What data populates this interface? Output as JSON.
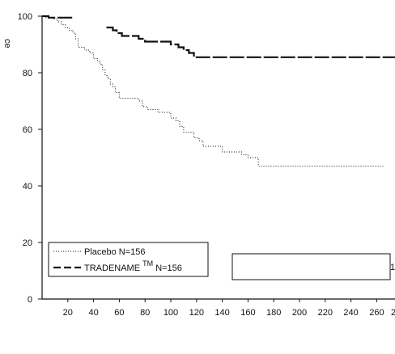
{
  "chart_data": {
    "type": "line",
    "title": "",
    "xlabel": "",
    "ylabel": "ce",
    "xlim": [
      0,
      275
    ],
    "ylim": [
      0,
      100
    ],
    "x_ticks": [
      20,
      40,
      60,
      80,
      100,
      120,
      140,
      160,
      180,
      200,
      220,
      240,
      260
    ],
    "x_tick_cut": "2",
    "y_ticks": [
      0,
      20,
      40,
      60,
      80,
      100
    ],
    "grid": false,
    "legend_position": "bottom-left",
    "legend": [
      {
        "series": "placebo",
        "line_label": "Placebo N=156"
      },
      {
        "series": "tradename",
        "line_label": "TRADENAME",
        "superscript": "TM",
        "suffix": " N=156"
      }
    ],
    "annotation_text": "1",
    "series": [
      {
        "id": "placebo",
        "name": "Placebo N=156",
        "style": "dotted",
        "points": [
          [
            0,
            100
          ],
          [
            3,
            100
          ],
          [
            3,
            99.5
          ],
          [
            8,
            99.5
          ],
          [
            8,
            99
          ],
          [
            12,
            99
          ],
          [
            12,
            98
          ],
          [
            15,
            98
          ],
          [
            15,
            97
          ],
          [
            18,
            97
          ],
          [
            18,
            96
          ],
          [
            21,
            96
          ],
          [
            21,
            95
          ],
          [
            24,
            95
          ],
          [
            24,
            94
          ],
          [
            26,
            94
          ],
          [
            26,
            92
          ],
          [
            28,
            92
          ],
          [
            28,
            89
          ],
          [
            33,
            89
          ],
          [
            33,
            88
          ],
          [
            37,
            88
          ],
          [
            37,
            87
          ],
          [
            40,
            87
          ],
          [
            40,
            85
          ],
          [
            43,
            85
          ],
          [
            43,
            84
          ],
          [
            45,
            84
          ],
          [
            45,
            83
          ],
          [
            47,
            83
          ],
          [
            47,
            81
          ],
          [
            49,
            81
          ],
          [
            49,
            79
          ],
          [
            51,
            79
          ],
          [
            51,
            78
          ],
          [
            53,
            78
          ],
          [
            53,
            76
          ],
          [
            55,
            76
          ],
          [
            55,
            75
          ],
          [
            57,
            75
          ],
          [
            57,
            73
          ],
          [
            60,
            73
          ],
          [
            60,
            71
          ],
          [
            75,
            71
          ],
          [
            75,
            70
          ],
          [
            78,
            70
          ],
          [
            78,
            68
          ],
          [
            82,
            68
          ],
          [
            82,
            67
          ],
          [
            90,
            67
          ],
          [
            90,
            66
          ],
          [
            100,
            66
          ],
          [
            100,
            64
          ],
          [
            104,
            64
          ],
          [
            104,
            63
          ],
          [
            107,
            63
          ],
          [
            107,
            61
          ],
          [
            110,
            61
          ],
          [
            110,
            59
          ],
          [
            118,
            59
          ],
          [
            118,
            57
          ],
          [
            122,
            57
          ],
          [
            122,
            56
          ],
          [
            125,
            56
          ],
          [
            125,
            54
          ],
          [
            140,
            54
          ],
          [
            140,
            52
          ],
          [
            155,
            52
          ],
          [
            155,
            51
          ],
          [
            160,
            51
          ],
          [
            160,
            50
          ],
          [
            168,
            50
          ],
          [
            168,
            47
          ],
          [
            190,
            47
          ],
          [
            265,
            47
          ]
        ]
      },
      {
        "id": "tradename",
        "name": "TRADENAME N=156",
        "style": "dashed",
        "points": [
          [
            0,
            100
          ],
          [
            5,
            100
          ],
          [
            5,
            99.5
          ],
          [
            25,
            99.5
          ],
          [
            25,
            null
          ],
          [
            50,
            96
          ],
          [
            55,
            96
          ],
          [
            55,
            95
          ],
          [
            58,
            95
          ],
          [
            58,
            94
          ],
          [
            62,
            94
          ],
          [
            62,
            93
          ],
          [
            75,
            93
          ],
          [
            75,
            92
          ],
          [
            80,
            92
          ],
          [
            80,
            91
          ],
          [
            100,
            91
          ],
          [
            100,
            90
          ],
          [
            106,
            90
          ],
          [
            106,
            89
          ],
          [
            110,
            89
          ],
          [
            110,
            88
          ],
          [
            114,
            88
          ],
          [
            114,
            87
          ],
          [
            118,
            87
          ],
          [
            118,
            86
          ],
          [
            120,
            86
          ],
          [
            120,
            85.5
          ],
          [
            275,
            85.5
          ]
        ]
      }
    ]
  }
}
